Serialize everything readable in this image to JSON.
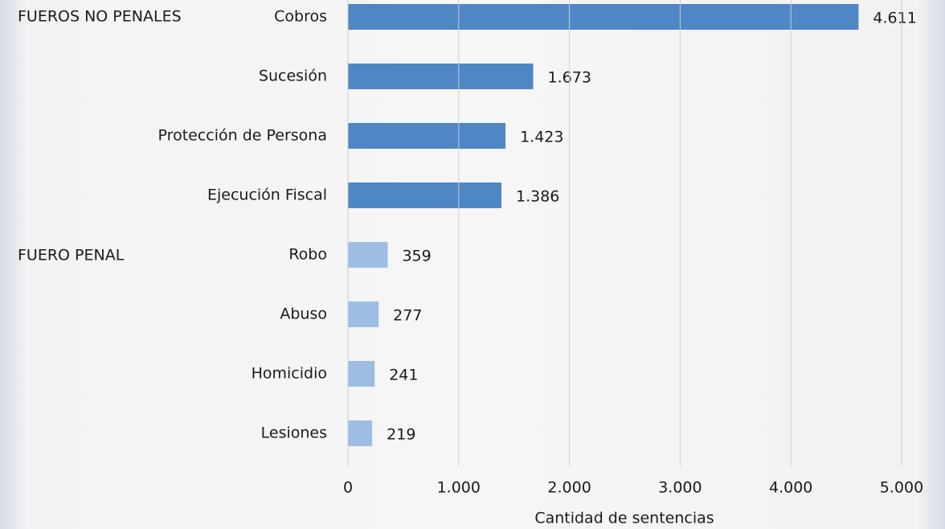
{
  "chart_data": {
    "type": "hbar",
    "x_label": "Cantidad de sentencias",
    "annotations": [
      "FUEROS NO PENALES",
      "FUERO PENAL"
    ],
    "categories": [
      "Cobros",
      "Sucesión",
      "Protección de Persona",
      "Ejecución Fiscal",
      "Robo",
      "Abuso",
      "Homicidio",
      "Lesiones"
    ],
    "values": [
      4611,
      1673,
      1423,
      1386,
      359,
      277,
      241,
      219
    ],
    "value_labels": [
      "4.611",
      "1.673",
      "1.423",
      "1.386",
      "359",
      "277",
      "241",
      "219"
    ],
    "colors": [
      "#4f86c6",
      "#4f86c6",
      "#4f86c6",
      "#4f86c6",
      "#9dbde3",
      "#9dbde3",
      "#9dbde3",
      "#9dbde3"
    ],
    "xlim": [
      0,
      5000
    ],
    "xticks": [
      0,
      {
        "value": 1000,
        "label": "1.000"
      },
      {
        "value": 2000,
        "label": "2.000"
      },
      {
        "value": 3000,
        "label": "3.000"
      },
      {
        "value": 4000,
        "label": "4.000"
      },
      {
        "value": 5000,
        "label": "5.000"
      }
    ],
    "grid": true
  }
}
